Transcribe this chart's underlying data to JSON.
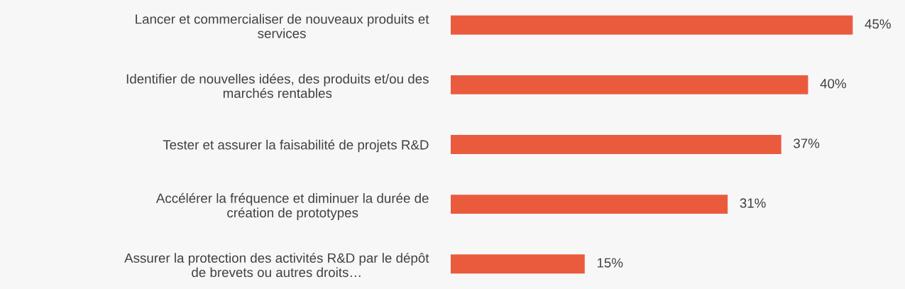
{
  "chart_data": {
    "type": "bar",
    "orientation": "horizontal",
    "categories": [
      "Lancer et commercialiser de nouveaux produits et\nservices",
      "Identifier de nouvelles idées, des produits et/ou des\nmarchés rentables",
      "Tester et assurer la faisabilité de projets R&D",
      "Accélérer la fréquence et diminuer la durée de\ncréation de prototypes",
      "Assurer la protection des activités R&D par le dépôt\nde brevets ou autres droits…"
    ],
    "values": [
      45,
      40,
      37,
      31,
      15
    ],
    "value_labels": [
      "45%",
      "40%",
      "37%",
      "31%",
      "15%"
    ],
    "color": "#ea5b3e",
    "grid": false,
    "legend": false,
    "tick_labels": "y"
  }
}
